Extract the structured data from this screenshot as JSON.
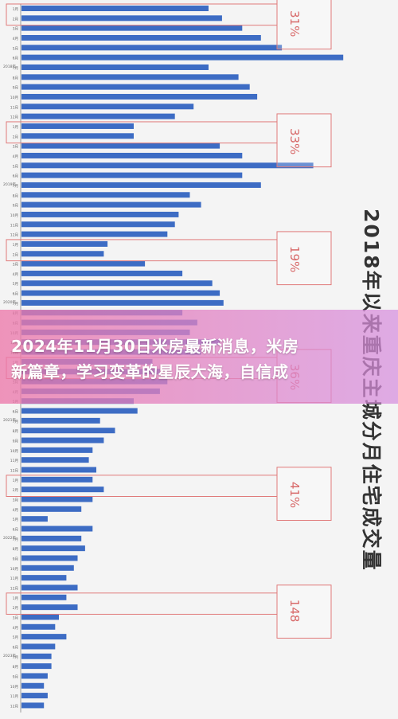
{
  "banner": {
    "line1": "2024年11月30日米房最新消息，米房",
    "line2": "新篇章，学习变革的星辰大海，自信成"
  },
  "chart_data": {
    "type": "bar",
    "orientation": "horizontal",
    "title": "2018年以来重庆主城分月住宅成交量",
    "title_position": "right-vertical",
    "bar_color": "#3d6cc4",
    "box_color": "#e07a7a",
    "years": [
      "2018年",
      "2019年",
      "2020年",
      "2021年",
      "2022年",
      "2023年"
    ],
    "categories": [
      "1月",
      "2月",
      "3月",
      "4月",
      "5月",
      "6月",
      "7月",
      "8月",
      "9月",
      "10月",
      "11月",
      "12月",
      "1月",
      "2月",
      "3月",
      "4月",
      "5月",
      "6月",
      "7月",
      "8月",
      "9月",
      "10月",
      "11月",
      "12月",
      "1月",
      "2月",
      "3月",
      "4月",
      "5月",
      "6月",
      "7月",
      "8月",
      "9月",
      "10月",
      "11月",
      "12月",
      "1月",
      "2月",
      "3月",
      "4月",
      "5月",
      "6月",
      "7月",
      "8月",
      "9月",
      "10月",
      "11月",
      "12月",
      "1月",
      "2月",
      "3月",
      "4月",
      "5月",
      "6月",
      "7月",
      "8月",
      "9月",
      "10月",
      "11月",
      "12月",
      "1月",
      "2月",
      "3月",
      "4月",
      "5月",
      "6月",
      "7月",
      "8月",
      "9月",
      "10月",
      "11月",
      "12月"
    ],
    "values": [
      250,
      268,
      295,
      320,
      348,
      430,
      250,
      290,
      305,
      315,
      230,
      205,
      150,
      150,
      265,
      295,
      390,
      295,
      320,
      225,
      240,
      210,
      205,
      195,
      115,
      110,
      165,
      215,
      255,
      265,
      270,
      215,
      235,
      225,
      265,
      240,
      175,
      185,
      195,
      185,
      150,
      155,
      105,
      125,
      110,
      95,
      90,
      100,
      95,
      110,
      95,
      80,
      35,
      95,
      80,
      85,
      75,
      70,
      60,
      75,
      60,
      75,
      50,
      45,
      60,
      45,
      40,
      40,
      35,
      30,
      35,
      30
    ],
    "annotations": [
      "31%",
      "33%",
      "19%",
      "36%",
      "41%",
      "148"
    ],
    "xlim": [
      0,
      440
    ]
  }
}
